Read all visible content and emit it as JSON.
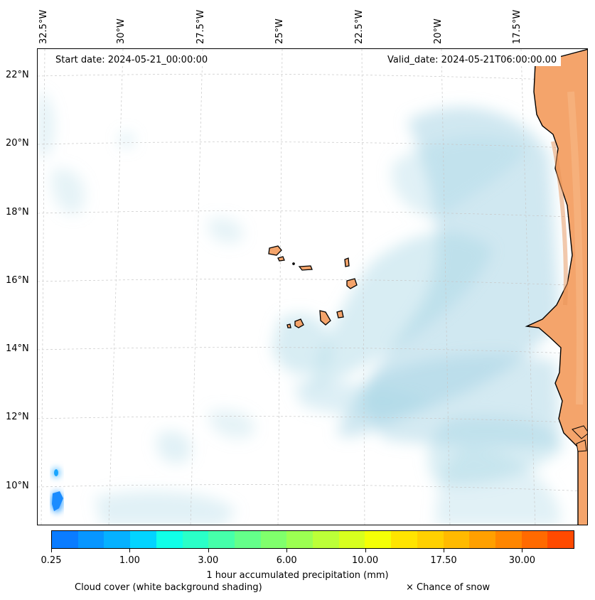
{
  "map": {
    "longitude_labels": [
      "32.5°W",
      "30°W",
      "27.5°W",
      "25°W",
      "22.5°W",
      "20°W",
      "17.5°W"
    ],
    "latitude_labels": [
      "22°N",
      "20°N",
      "18°N",
      "16°N",
      "14°N",
      "12°N",
      "10°N"
    ],
    "start_date": "Start date: 2024-05-21_00:00:00",
    "valid_date": "Valid_date: 2024-05-21T06:00:00.00",
    "land_color": "#f4a46b",
    "cloud_color": "#a9d6e5",
    "region": "Cape Verde islands and West African coast"
  },
  "colorbar": {
    "title": "1 hour accumulated precipitation (mm)",
    "tick_labels": [
      "0.25",
      "1.00",
      "3.00",
      "6.00",
      "10.00",
      "17.50",
      "30.00"
    ],
    "colors": [
      "#0a7cff",
      "#0796ff",
      "#05b1ff",
      "#02d4ff",
      "#10ffe8",
      "#2affc8",
      "#46ffaa",
      "#64ff8a",
      "#80ff6c",
      "#9cff52",
      "#bcff38",
      "#d8ff1e",
      "#f4ff06",
      "#ffe400",
      "#ffd000",
      "#ffba00",
      "#ffa000",
      "#ff8600",
      "#ff6a00",
      "#ff4a00"
    ]
  },
  "legend": {
    "cloud_cover": "Cloud cover (white background shading)",
    "snow": "× Chance of snow"
  }
}
